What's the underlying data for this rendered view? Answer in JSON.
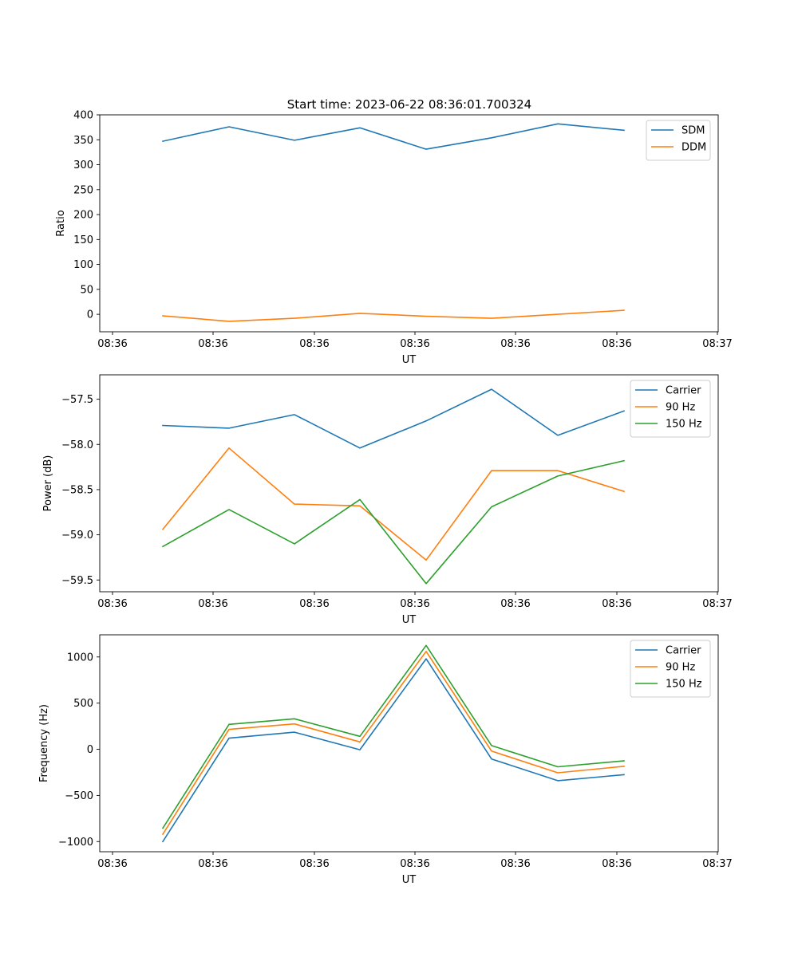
{
  "figure": {
    "title": "Start time: 2023-06-22 08:36:01.700324"
  },
  "chart_data": [
    {
      "type": "line",
      "xlabel": "UT",
      "ylabel": "Ratio",
      "xticks": [
        "08:36",
        "08:36",
        "08:36",
        "08:36",
        "08:36",
        "08:36",
        "08:37"
      ],
      "yticks": [
        0,
        50,
        100,
        150,
        200,
        250,
        300,
        350,
        400
      ],
      "ylim": [
        -35,
        400
      ],
      "legend_position": "top-right",
      "x": [
        1,
        2,
        3,
        4,
        5,
        6,
        7,
        8
      ],
      "series": [
        {
          "name": "SDM",
          "color": "#1f77b4",
          "values": [
            347,
            376,
            349,
            374,
            331,
            354,
            382,
            369
          ]
        },
        {
          "name": "DDM",
          "color": "#ff7f0e",
          "values": [
            -3,
            -14,
            -8,
            2,
            -4,
            -8,
            0,
            8
          ]
        }
      ]
    },
    {
      "type": "line",
      "xlabel": "UT",
      "ylabel": "Power (dB)",
      "xticks": [
        "08:36",
        "08:36",
        "08:36",
        "08:36",
        "08:36",
        "08:36",
        "08:37"
      ],
      "yticks": [
        "−59.5",
        "−59.0",
        "−58.5",
        "−58.0",
        "−57.5"
      ],
      "ylim": [
        -59.63,
        -57.23
      ],
      "legend_position": "top-right",
      "x": [
        1,
        2,
        3,
        4,
        5,
        6,
        7,
        8
      ],
      "series": [
        {
          "name": "Carrier",
          "color": "#1f77b4",
          "values": [
            -57.79,
            -57.82,
            -57.67,
            -58.04,
            -57.74,
            -57.39,
            -57.9,
            -57.63
          ]
        },
        {
          "name": "90 Hz",
          "color": "#ff7f0e",
          "values": [
            -58.94,
            -58.04,
            -58.66,
            -58.68,
            -59.28,
            -58.29,
            -58.29,
            -58.52
          ]
        },
        {
          "name": "150 Hz",
          "color": "#2ca02c",
          "values": [
            -59.13,
            -58.72,
            -59.1,
            -58.61,
            -59.54,
            -58.69,
            -58.35,
            -58.18
          ]
        }
      ]
    },
    {
      "type": "line",
      "xlabel": "UT",
      "ylabel": "Frequency (Hz)",
      "xticks": [
        "08:36",
        "08:36",
        "08:36",
        "08:36",
        "08:36",
        "08:36",
        "08:37"
      ],
      "yticks": [
        "−1000",
        "−500",
        "0",
        "500",
        "1000"
      ],
      "ylim": [
        -1110,
        1240
      ],
      "legend_position": "top-right",
      "x": [
        1,
        2,
        3,
        4,
        5,
        6,
        7,
        8
      ],
      "series": [
        {
          "name": "Carrier",
          "color": "#1f77b4",
          "values": [
            -1000,
            120,
            185,
            -5,
            980,
            -105,
            -340,
            -275
          ]
        },
        {
          "name": "90 Hz",
          "color": "#ff7f0e",
          "values": [
            -920,
            215,
            275,
            80,
            1060,
            -20,
            -255,
            -185
          ]
        },
        {
          "name": "150 Hz",
          "color": "#2ca02c",
          "values": [
            -855,
            270,
            330,
            140,
            1125,
            40,
            -190,
            -125
          ]
        }
      ]
    }
  ]
}
